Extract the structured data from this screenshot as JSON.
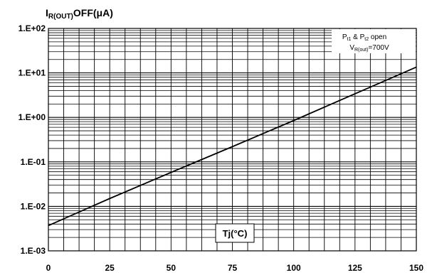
{
  "chart_data": {
    "type": "line",
    "title": "",
    "ylabel": {
      "main": "I",
      "sub": "R(OUT)",
      "rest": "OFF(μA)"
    },
    "xlabel": "Tj(°C)",
    "x_ticks": [
      "0",
      "25",
      "50",
      "75",
      "100",
      "125",
      "150"
    ],
    "y_ticks": [
      "1.E+02",
      "1.E+01",
      "1.E+00",
      "1.E-01",
      "1.E-02",
      "1.E-03"
    ],
    "xlim": [
      0,
      150
    ],
    "ylim": [
      0.001,
      100
    ],
    "y_scale": "log",
    "grid": true,
    "annotation": {
      "line1": {
        "p1": "P",
        "s1": "t1",
        "mid": " & P",
        "s2": "t2",
        "end": " open"
      },
      "line2": {
        "v": "V",
        "sub": "R(out)",
        "end": "=700V"
      }
    },
    "series": [
      {
        "x": [
          0,
          25,
          50,
          75,
          100,
          125,
          150
        ],
        "y": [
          0.0037,
          0.015,
          0.058,
          0.22,
          0.85,
          3.4,
          13.5
        ]
      }
    ],
    "line_color": "#000000"
  }
}
